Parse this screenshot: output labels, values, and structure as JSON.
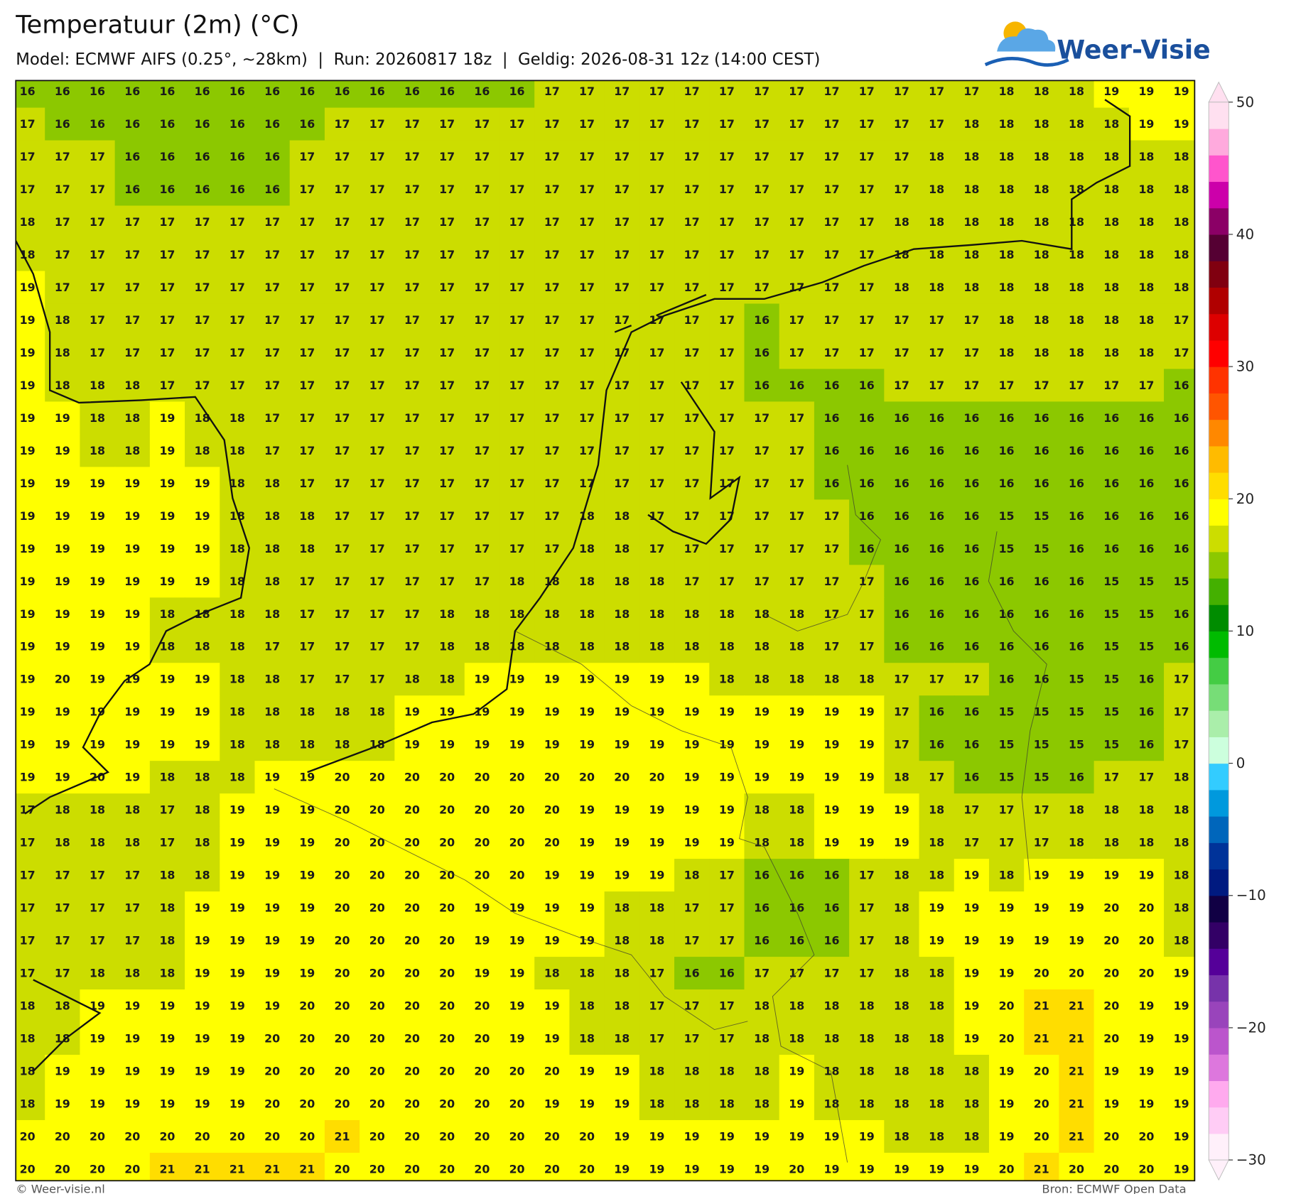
{
  "title": "Temperatuur (2m) (°C)",
  "subtitle": "Model: ECMWF AIFS (0.25°, ~28km)  |  Run: 20260817 18z  |  Geldig: 2026-08-31 12z (14:00 CEST)",
  "logo": "Weer-Visie",
  "footer_left": "© Weer-visie.nl",
  "footer_right": "Bron: ECMWF Open Data",
  "grid": {
    "rows": [
      [
        16,
        16,
        16,
        16,
        16,
        16,
        16,
        16,
        16,
        16,
        16,
        16,
        16,
        16,
        16,
        17,
        17,
        17,
        17,
        17,
        17,
        17,
        17,
        17,
        17,
        17,
        17,
        17,
        18,
        18,
        18,
        19,
        19,
        19
      ],
      [
        17,
        16,
        16,
        16,
        16,
        16,
        16,
        16,
        16,
        17,
        17,
        17,
        17,
        17,
        17,
        17,
        17,
        17,
        17,
        17,
        17,
        17,
        17,
        17,
        17,
        17,
        17,
        18,
        18,
        18,
        18,
        18,
        19,
        19
      ],
      [
        17,
        17,
        17,
        16,
        16,
        16,
        16,
        16,
        17,
        17,
        17,
        17,
        17,
        17,
        17,
        17,
        17,
        17,
        17,
        17,
        17,
        17,
        17,
        17,
        17,
        17,
        18,
        18,
        18,
        18,
        18,
        18,
        18,
        18
      ],
      [
        17,
        17,
        17,
        16,
        16,
        16,
        16,
        16,
        17,
        17,
        17,
        17,
        17,
        17,
        17,
        17,
        17,
        17,
        17,
        17,
        17,
        17,
        17,
        17,
        17,
        17,
        18,
        18,
        18,
        18,
        18,
        18,
        18,
        18
      ],
      [
        18,
        17,
        17,
        17,
        17,
        17,
        17,
        17,
        17,
        17,
        17,
        17,
        17,
        17,
        17,
        17,
        17,
        17,
        17,
        17,
        17,
        17,
        17,
        17,
        17,
        18,
        18,
        18,
        18,
        18,
        18,
        18,
        18,
        18
      ],
      [
        18,
        17,
        17,
        17,
        17,
        17,
        17,
        17,
        17,
        17,
        17,
        17,
        17,
        17,
        17,
        17,
        17,
        17,
        17,
        17,
        17,
        17,
        17,
        17,
        17,
        18,
        18,
        18,
        18,
        18,
        18,
        18,
        18,
        18
      ],
      [
        19,
        17,
        17,
        17,
        17,
        17,
        17,
        17,
        17,
        17,
        17,
        17,
        17,
        17,
        17,
        17,
        17,
        17,
        17,
        17,
        17,
        17,
        17,
        17,
        17,
        18,
        18,
        18,
        18,
        18,
        18,
        18,
        18,
        18
      ],
      [
        19,
        18,
        17,
        17,
        17,
        17,
        17,
        17,
        17,
        17,
        17,
        17,
        17,
        17,
        17,
        17,
        17,
        17,
        17,
        17,
        17,
        16,
        17,
        17,
        17,
        17,
        17,
        17,
        18,
        18,
        18,
        18,
        18,
        17
      ],
      [
        19,
        18,
        17,
        17,
        17,
        17,
        17,
        17,
        17,
        17,
        17,
        17,
        17,
        17,
        17,
        17,
        17,
        17,
        17,
        17,
        17,
        16,
        17,
        17,
        17,
        17,
        17,
        17,
        18,
        18,
        18,
        18,
        18,
        17
      ],
      [
        19,
        18,
        18,
        18,
        17,
        17,
        17,
        17,
        17,
        17,
        17,
        17,
        17,
        17,
        17,
        17,
        17,
        17,
        17,
        17,
        17,
        16,
        16,
        16,
        16,
        17,
        17,
        17,
        17,
        17,
        17,
        17,
        17,
        16
      ],
      [
        19,
        19,
        18,
        18,
        19,
        18,
        18,
        17,
        17,
        17,
        17,
        17,
        17,
        17,
        17,
        17,
        17,
        17,
        17,
        17,
        17,
        17,
        17,
        16,
        16,
        16,
        16,
        16,
        16,
        16,
        16,
        16,
        16,
        16
      ],
      [
        19,
        19,
        18,
        18,
        19,
        18,
        18,
        17,
        17,
        17,
        17,
        17,
        17,
        17,
        17,
        17,
        17,
        17,
        17,
        17,
        17,
        17,
        17,
        16,
        16,
        16,
        16,
        16,
        16,
        16,
        16,
        16,
        16,
        16
      ],
      [
        19,
        19,
        19,
        19,
        19,
        19,
        18,
        18,
        17,
        17,
        17,
        17,
        17,
        17,
        17,
        17,
        17,
        17,
        17,
        17,
        17,
        17,
        17,
        16,
        16,
        16,
        16,
        16,
        16,
        16,
        16,
        16,
        16,
        16
      ],
      [
        19,
        19,
        19,
        19,
        19,
        19,
        18,
        18,
        18,
        17,
        17,
        17,
        17,
        17,
        17,
        17,
        18,
        18,
        17,
        17,
        17,
        17,
        17,
        17,
        16,
        16,
        16,
        16,
        15,
        15,
        16,
        16,
        16,
        16
      ],
      [
        19,
        19,
        19,
        19,
        19,
        19,
        18,
        18,
        18,
        17,
        17,
        17,
        17,
        17,
        17,
        17,
        18,
        18,
        17,
        17,
        17,
        17,
        17,
        17,
        16,
        16,
        16,
        16,
        15,
        15,
        16,
        16,
        16,
        16
      ],
      [
        19,
        19,
        19,
        19,
        19,
        19,
        18,
        18,
        17,
        17,
        17,
        17,
        17,
        17,
        18,
        18,
        18,
        18,
        18,
        17,
        17,
        17,
        17,
        17,
        17,
        16,
        16,
        16,
        16,
        16,
        16,
        15,
        15,
        15
      ],
      [
        19,
        19,
        19,
        19,
        18,
        18,
        18,
        18,
        17,
        17,
        17,
        17,
        18,
        18,
        18,
        18,
        18,
        18,
        18,
        18,
        18,
        18,
        18,
        17,
        17,
        16,
        16,
        16,
        16,
        16,
        16,
        15,
        15,
        16
      ],
      [
        19,
        19,
        19,
        19,
        18,
        18,
        18,
        17,
        17,
        17,
        17,
        17,
        18,
        18,
        18,
        18,
        18,
        18,
        18,
        18,
        18,
        18,
        18,
        17,
        17,
        16,
        16,
        16,
        16,
        16,
        16,
        15,
        15,
        16
      ],
      [
        19,
        20,
        19,
        19,
        19,
        19,
        18,
        18,
        17,
        17,
        17,
        18,
        18,
        19,
        19,
        19,
        19,
        19,
        19,
        19,
        18,
        18,
        18,
        18,
        18,
        17,
        17,
        17,
        16,
        16,
        15,
        15,
        16,
        17
      ],
      [
        19,
        19,
        19,
        19,
        19,
        19,
        18,
        18,
        18,
        18,
        18,
        19,
        19,
        19,
        19,
        19,
        19,
        19,
        19,
        19,
        19,
        19,
        19,
        19,
        19,
        17,
        16,
        16,
        15,
        15,
        15,
        15,
        16,
        17
      ],
      [
        19,
        19,
        19,
        19,
        19,
        19,
        18,
        18,
        18,
        18,
        18,
        19,
        19,
        19,
        19,
        19,
        19,
        19,
        19,
        19,
        19,
        19,
        19,
        19,
        19,
        17,
        16,
        16,
        15,
        15,
        15,
        15,
        16,
        17
      ],
      [
        19,
        19,
        20,
        19,
        18,
        18,
        18,
        19,
        19,
        20,
        20,
        20,
        20,
        20,
        20,
        20,
        20,
        20,
        20,
        19,
        19,
        19,
        19,
        19,
        19,
        18,
        17,
        16,
        15,
        15,
        16,
        17,
        17,
        18
      ],
      [
        17,
        18,
        18,
        18,
        17,
        18,
        19,
        19,
        19,
        20,
        20,
        20,
        20,
        20,
        20,
        20,
        19,
        19,
        19,
        19,
        19,
        18,
        18,
        19,
        19,
        19,
        18,
        17,
        17,
        17,
        18,
        18,
        18,
        18
      ],
      [
        17,
        18,
        18,
        18,
        17,
        18,
        19,
        19,
        19,
        20,
        20,
        20,
        20,
        20,
        20,
        20,
        19,
        19,
        19,
        19,
        19,
        18,
        18,
        19,
        19,
        19,
        18,
        17,
        17,
        17,
        18,
        18,
        18,
        18
      ],
      [
        17,
        17,
        17,
        17,
        18,
        18,
        19,
        19,
        19,
        20,
        20,
        20,
        20,
        20,
        20,
        19,
        19,
        19,
        19,
        18,
        17,
        16,
        16,
        16,
        17,
        18,
        18,
        19,
        18,
        19,
        19,
        19,
        19,
        18
      ],
      [
        17,
        17,
        17,
        17,
        18,
        19,
        19,
        19,
        19,
        20,
        20,
        20,
        20,
        19,
        19,
        19,
        19,
        18,
        18,
        17,
        17,
        16,
        16,
        16,
        17,
        18,
        19,
        19,
        19,
        19,
        19,
        20,
        20,
        18
      ],
      [
        17,
        17,
        17,
        17,
        18,
        19,
        19,
        19,
        19,
        20,
        20,
        20,
        20,
        19,
        19,
        19,
        19,
        18,
        18,
        17,
        17,
        16,
        16,
        16,
        17,
        18,
        19,
        19,
        19,
        19,
        19,
        20,
        20,
        18
      ],
      [
        17,
        17,
        18,
        18,
        18,
        19,
        19,
        19,
        19,
        20,
        20,
        20,
        20,
        19,
        19,
        18,
        18,
        18,
        17,
        16,
        16,
        17,
        17,
        17,
        17,
        18,
        18,
        19,
        19,
        20,
        20,
        20,
        20,
        19
      ],
      [
        18,
        18,
        19,
        19,
        19,
        19,
        19,
        19,
        20,
        20,
        20,
        20,
        20,
        20,
        19,
        19,
        18,
        18,
        17,
        17,
        17,
        18,
        18,
        18,
        18,
        18,
        18,
        19,
        20,
        21,
        21,
        20,
        19,
        19
      ],
      [
        18,
        18,
        19,
        19,
        19,
        19,
        19,
        20,
        20,
        20,
        20,
        20,
        20,
        20,
        19,
        19,
        18,
        18,
        17,
        17,
        17,
        18,
        18,
        18,
        18,
        18,
        18,
        19,
        20,
        21,
        21,
        20,
        19,
        19
      ],
      [
        18,
        19,
        19,
        19,
        19,
        19,
        19,
        20,
        20,
        20,
        20,
        20,
        20,
        20,
        20,
        20,
        19,
        19,
        18,
        18,
        18,
        18,
        19,
        18,
        18,
        18,
        18,
        18,
        19,
        20,
        21,
        19,
        19,
        19
      ],
      [
        18,
        19,
        19,
        19,
        19,
        19,
        19,
        20,
        20,
        20,
        20,
        20,
        20,
        20,
        20,
        19,
        19,
        19,
        18,
        18,
        18,
        18,
        19,
        18,
        18,
        18,
        18,
        18,
        19,
        20,
        21,
        19,
        19,
        19
      ],
      [
        20,
        20,
        20,
        20,
        20,
        20,
        20,
        20,
        20,
        21,
        20,
        20,
        20,
        20,
        20,
        20,
        20,
        19,
        19,
        19,
        19,
        19,
        19,
        19,
        19,
        18,
        18,
        18,
        19,
        20,
        21,
        20,
        20,
        19
      ],
      [
        20,
        20,
        20,
        20,
        21,
        21,
        21,
        21,
        21,
        20,
        20,
        20,
        20,
        20,
        20,
        20,
        20,
        19,
        19,
        19,
        19,
        19,
        20,
        19,
        19,
        19,
        19,
        19,
        20,
        21,
        20,
        20,
        20,
        19
      ]
    ]
  },
  "colorbar": {
    "lim": [
      -30,
      50
    ],
    "ticks": [
      {
        "value": -30,
        "label": "−30"
      },
      {
        "value": -20,
        "label": "−20"
      },
      {
        "value": -10,
        "label": "−10"
      },
      0,
      10,
      20,
      30,
      40,
      50
    ],
    "colors": [
      "#fff0fa",
      "#ffccf5",
      "#ffaaee",
      "#dd77dd",
      "#bb55cc",
      "#9944bb",
      "#7733aa",
      "#550099",
      "#330066",
      "#110044",
      "#001a80",
      "#003399",
      "#0066bb",
      "#0099dd",
      "#33ccff",
      "#ccffdd",
      "#aaeeaa",
      "#77dd77",
      "#44cc44",
      "#00bb00",
      "#008c00",
      "#44b000",
      "#8cc800",
      "#ccdd00",
      "#ffff00",
      "#ffdd00",
      "#ffbb00",
      "#ff8800",
      "#ff5500",
      "#ff3300",
      "#ff0000",
      "#dd0000",
      "#b00000",
      "#800010",
      "#550033",
      "#8b0066",
      "#cc00aa",
      "#ff55cc",
      "#ffaadd",
      "#ffe0f0"
    ]
  }
}
